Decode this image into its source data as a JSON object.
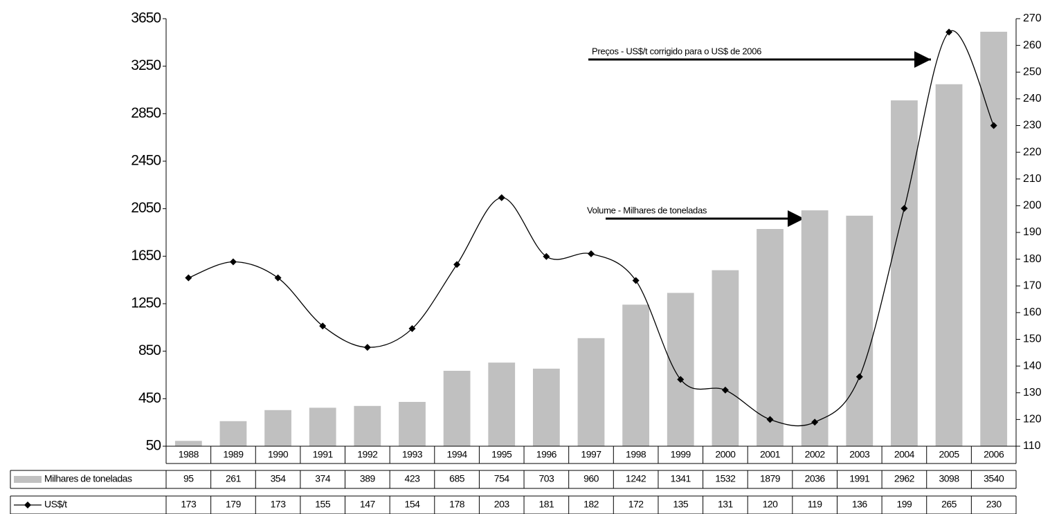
{
  "chart_data": {
    "type": "combo",
    "categories": [
      "1988",
      "1989",
      "1990",
      "1991",
      "1992",
      "1993",
      "1994",
      "1995",
      "1996",
      "1997",
      "1998",
      "1999",
      "2000",
      "2001",
      "2002",
      "2003",
      "2004",
      "2005",
      "2006"
    ],
    "series": [
      {
        "name": "Milhares de toneladas",
        "type": "bar",
        "color": "#c0c0c0",
        "values": [
          95,
          261,
          354,
          374,
          389,
          423,
          685,
          754,
          703,
          960,
          1242,
          1341,
          1532,
          1879,
          2036,
          1991,
          2962,
          3098,
          3540
        ]
      },
      {
        "name": "US$/t",
        "type": "line",
        "axis": "y2",
        "color": "#000000",
        "values": [
          173,
          179,
          173,
          155,
          147,
          154,
          178,
          203,
          181,
          182,
          172,
          135,
          131,
          120,
          119,
          136,
          199,
          265,
          230
        ]
      }
    ],
    "ylim": [
      50,
      3650
    ],
    "yticks": [
      50,
      450,
      850,
      1250,
      1650,
      2050,
      2450,
      2850,
      3250,
      3650
    ],
    "y2lim": [
      110,
      270
    ],
    "y2ticks": [
      110,
      120,
      130,
      140,
      150,
      160,
      170,
      180,
      190,
      200,
      210,
      220,
      230,
      240,
      250,
      260,
      270
    ],
    "annotations": [
      "Preços - US$/t corrigido para o US$ de 2006",
      "Volume - Milhares de toneladas"
    ]
  }
}
